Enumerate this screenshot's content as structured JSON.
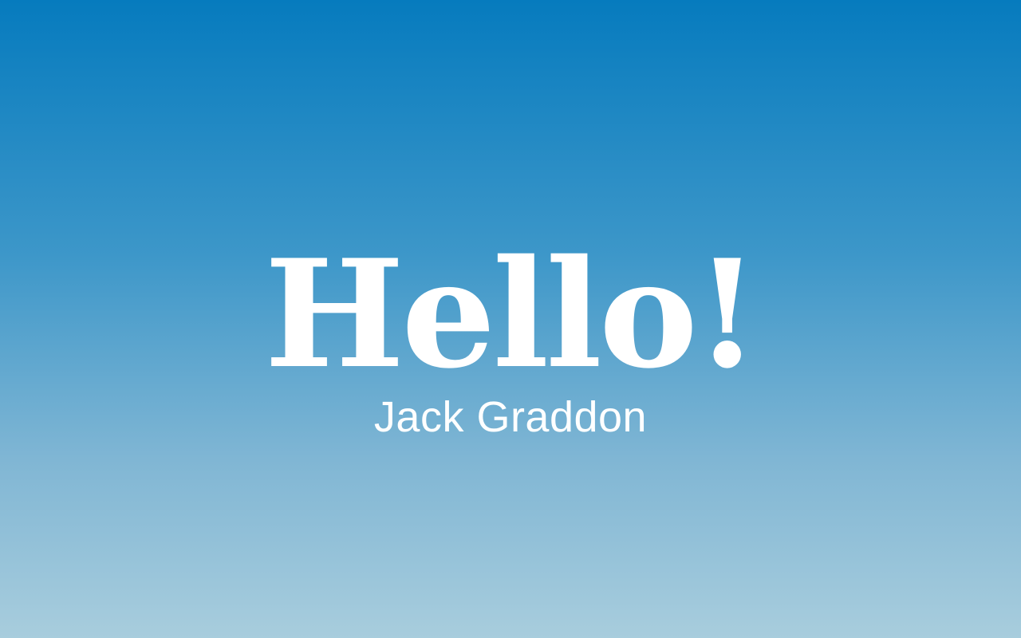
{
  "screen": {
    "greeting": "Hello!",
    "user_name": "Jack Graddon"
  },
  "colors": {
    "gradient_top": "#067bbe",
    "gradient_bottom": "#a8cddd",
    "text": "#ffffff"
  }
}
